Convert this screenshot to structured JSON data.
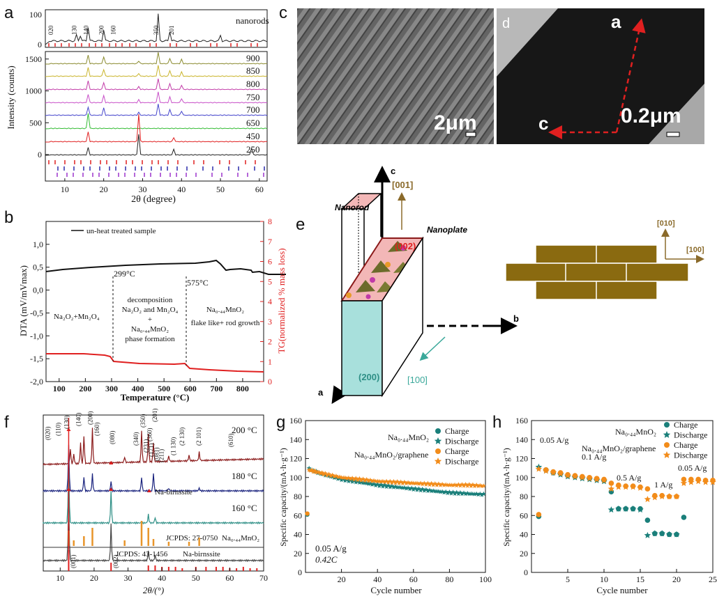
{
  "panels": {
    "a": {
      "label": "a",
      "ylabel": "Intensity (counts)",
      "xlabel": "2θ (degree)",
      "xticks": [
        "10",
        "20",
        "30",
        "40",
        "50",
        "60"
      ],
      "yticks": [
        "0",
        "500",
        "1000",
        "1500"
      ],
      "top_yticks": [
        "0",
        "100"
      ],
      "top_label": "nanorods",
      "peak_labels": [
        "020",
        "130",
        "140",
        "200",
        "160",
        "350",
        "201"
      ],
      "temps": [
        "900",
        "850",
        "800",
        "750",
        "700",
        "650",
        "450",
        "250"
      ],
      "colors": [
        "#8a8a2e",
        "#c9b42a",
        "#c23ca8",
        "#c850c8",
        "#4444cc",
        "#33bb33",
        "#e02020",
        "#222222"
      ]
    },
    "b": {
      "label": "b",
      "ylabel": "DTA (mV/mVmax)",
      "ylabel_right": "TG(normalized % mass loss)",
      "xlabel": "Temperature (°C)",
      "xticks": [
        "100",
        "200",
        "300",
        "400",
        "500",
        "600",
        "700",
        "800"
      ],
      "yticks": [
        "1,0",
        "0,5",
        "0,0",
        "-0,5",
        "-1,0",
        "-1,5",
        "-2,0"
      ],
      "yticks_right": [
        "0",
        "1",
        "2",
        "3",
        "4",
        "5",
        "6",
        "7",
        "8"
      ],
      "legend": "un-heat treated sample",
      "ann_299": "299°C",
      "ann_575": "575°C",
      "region1": "Na₂O₂+Mn₂O₄",
      "region2_l1": "decomposition",
      "region2_l2": "Na₂O₂ and Mn₂O₄",
      "region2_l3": "+",
      "region2_l4": "Na₀.₄₄MnO₂",
      "region2_l5": "phase formation",
      "region3_l1": "Na₀.₄₄MnO₂",
      "region3_l2": "flake like+ rod growth"
    },
    "c": {
      "label": "c",
      "scale": "2μm"
    },
    "d": {
      "label": "d",
      "scale": "0.2μm",
      "axis_a": "a",
      "axis_c": "c"
    },
    "e": {
      "label": "e",
      "c_axis": "c",
      "b_axis": "b",
      "a_axis": "a",
      "nanorod": "Nanorod",
      "nanoplate": "Nanoplate",
      "dir001": "[001]",
      "face002": "(002)",
      "face200": "(200)",
      "dir100": "[100]",
      "brick010": "[010]",
      "brick100": "[100]"
    },
    "f": {
      "label": "f",
      "xlabel": "2θ/(°)",
      "xticks": [
        "10",
        "20",
        "30",
        "40",
        "50",
        "60",
        "70"
      ],
      "traces": [
        "200 °C",
        "180 °C",
        "160 °C"
      ],
      "birnessite_marker": "Na-birnssite",
      "jcpds1": "JCPDS: 27-0750",
      "jcpds1_name": "Na₀.₄₄MnO₂",
      "jcpds2": "JCPDS: 43-1456",
      "jcpds2_name": "Na-birnssite",
      "hkl": [
        "(020)",
        "(110)",
        "(130)",
        "(140)",
        "(200)",
        "(160)",
        "(080)",
        "(340)",
        "(350)",
        "(360)",
        "(201)",
        "(231)",
        "(171)",
        "(081)",
        "(211)",
        "(1 130)",
        "(2 130)",
        "(2 101)",
        "(610)"
      ],
      "hkl_bottom": [
        "(001)",
        "(002)"
      ]
    },
    "g": {
      "label": "g",
      "ylabel": "Specific capacity/(mA·h·g⁻¹)",
      "xlabel": "Cycle number",
      "xticks": [
        "20",
        "40",
        "60",
        "80",
        "100"
      ],
      "yticks": [
        "0",
        "20",
        "40",
        "60",
        "80",
        "100",
        "120",
        "140",
        "160"
      ],
      "series_labels": [
        "Na₀.₄₄MnO₂",
        "Na₀.₄₄MnO₂/graphene"
      ],
      "legend": [
        "Charge",
        "Discharge",
        "Charge",
        "Discharge"
      ],
      "note1": "0.05 A/g",
      "note2": "0.42C"
    },
    "h": {
      "label": "h",
      "ylabel": "Specific capacity/(mA·h·g⁻¹)",
      "xlabel": "Cycle number",
      "xticks": [
        "5",
        "10",
        "15",
        "20",
        "25"
      ],
      "yticks": [
        "0",
        "20",
        "40",
        "60",
        "80",
        "100",
        "120",
        "140",
        "160"
      ],
      "series_labels": [
        "Na₀.₄₄MnO₂",
        "Na₀.₄₄MnO₂/graphene"
      ],
      "legend": [
        "Charge",
        "Discharge",
        "Charge",
        "Discharge"
      ],
      "rates": [
        "0.05 A/g",
        "0.1 A/g",
        "0.5 A/g",
        "1 A/g",
        "0.05 A/g"
      ]
    }
  },
  "chart_data": [
    {
      "type": "line",
      "panel": "g",
      "xlabel": "Cycle number",
      "ylabel": "Specific capacity/(mA·h·g⁻¹)",
      "xlim": [
        0,
        100
      ],
      "ylim": [
        0,
        160
      ],
      "series": [
        {
          "name": "Na₀.₄₄MnO₂ Charge",
          "x": [
            1
          ],
          "y": [
            61
          ]
        },
        {
          "name": "Na₀.₄₄MnO₂ Discharge",
          "x": [
            2,
            10,
            20,
            30,
            40,
            50,
            60,
            70,
            80,
            90,
            100
          ],
          "y": [
            109,
            103,
            98,
            95,
            92,
            90,
            88,
            86,
            84,
            83,
            82
          ]
        },
        {
          "name": "Na₀.₄₄MnO₂/graphene Charge",
          "x": [
            1
          ],
          "y": [
            62
          ]
        },
        {
          "name": "Na₀.₄₄MnO₂/graphene Discharge",
          "x": [
            2,
            10,
            20,
            30,
            40,
            50,
            60,
            70,
            80,
            90,
            100
          ],
          "y": [
            108,
            104,
            100,
            98,
            96,
            95,
            94,
            93,
            92,
            92,
            91
          ]
        }
      ]
    },
    {
      "type": "scatter",
      "panel": "h",
      "xlabel": "Cycle number",
      "ylabel": "Specific capacity/(mA·h·g⁻¹)",
      "xlim": [
        0,
        25
      ],
      "ylim": [
        0,
        160
      ],
      "series": [
        {
          "name": "Na₀.₄₄MnO₂ Charge",
          "x": [
            1,
            2,
            3,
            4,
            5,
            6,
            7,
            8,
            9,
            10,
            11,
            12,
            13,
            14,
            15,
            16,
            17,
            18,
            19,
            20,
            21
          ],
          "y": [
            59,
            108,
            105,
            104,
            102,
            101,
            100,
            99,
            98,
            97,
            85,
            67,
            67,
            67,
            67,
            55,
            41,
            41,
            40,
            40,
            58
          ]
        },
        {
          "name": "Na₀.₄₄MnO₂ Discharge",
          "x": [
            1,
            2,
            3,
            4,
            5,
            6,
            7,
            8,
            9,
            10,
            11,
            12,
            13,
            14,
            15,
            16,
            17,
            18,
            19,
            20
          ],
          "y": [
            111,
            107,
            105,
            103,
            101,
            100,
            99,
            98,
            97,
            96,
            66,
            67,
            67,
            67,
            66,
            39,
            41,
            41,
            40,
            40
          ]
        },
        {
          "name": "Na₀.₄₄MnO₂/graphene Charge",
          "x": [
            1,
            2,
            3,
            4,
            5,
            6,
            7,
            8,
            9,
            10,
            11,
            12,
            13,
            14,
            15,
            16,
            17,
            18,
            19,
            20,
            21,
            22,
            23,
            24,
            25
          ],
          "y": [
            61,
            108,
            106,
            105,
            103,
            102,
            101,
            100,
            99,
            98,
            94,
            92,
            91,
            91,
            90,
            88,
            81,
            81,
            80,
            80,
            98,
            98,
            98,
            97,
            97
          ]
        },
        {
          "name": "Na₀.₄₄MnO₂/graphene Discharge",
          "x": [
            1,
            2,
            3,
            4,
            5,
            6,
            7,
            8,
            9,
            10,
            11,
            12,
            13,
            14,
            15,
            16,
            17,
            18,
            19,
            20,
            21,
            22,
            23,
            24,
            25
          ],
          "y": [
            109,
            107,
            105,
            104,
            102,
            101,
            100,
            99,
            98,
            97,
            88,
            90,
            90,
            90,
            89,
            77,
            79,
            80,
            80,
            80,
            94,
            95,
            96,
            95,
            95
          ]
        }
      ]
    }
  ]
}
